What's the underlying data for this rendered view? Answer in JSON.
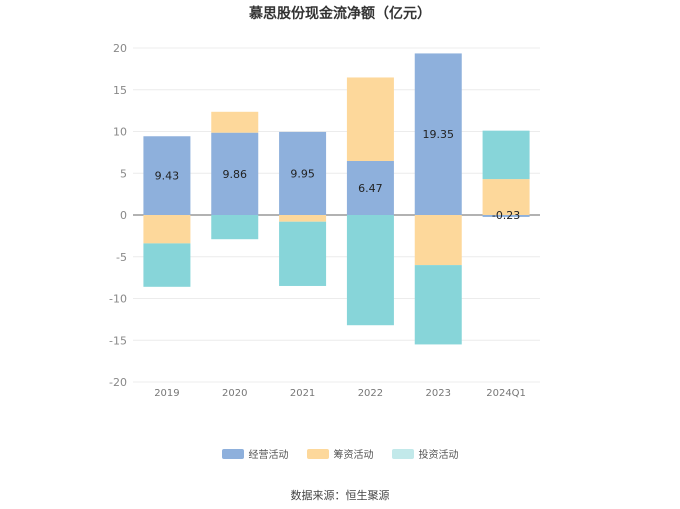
{
  "chart_data": {
    "type": "bar",
    "stacked": true,
    "title": "慕思股份现金流净额（亿元）",
    "categories": [
      "2019",
      "2020",
      "2021",
      "2022",
      "2023",
      "2024Q1"
    ],
    "ylim": [
      -20,
      20
    ],
    "yticks": [
      20,
      15,
      10,
      5,
      0,
      -5,
      -10,
      -15,
      -20
    ],
    "series": [
      {
        "name": "经营活动",
        "color": "#8eb0dc",
        "values": [
          9.43,
          9.86,
          9.95,
          6.47,
          19.35,
          -0.23
        ],
        "labels": [
          "9.43",
          "9.86",
          "9.95",
          "6.47",
          "19.35",
          "-0.23"
        ]
      },
      {
        "name": "筹资活动",
        "color": "#fdd89b",
        "values": [
          -3.4,
          2.5,
          -0.8,
          10.0,
          -6.0,
          4.3
        ]
      },
      {
        "name": "投资活动",
        "color": "#87d5d9",
        "values": [
          -5.2,
          -2.9,
          -7.7,
          -13.2,
          -9.5,
          5.8
        ]
      }
    ],
    "legend_position": "bottom"
  },
  "source": "数据来源：恒生聚源"
}
